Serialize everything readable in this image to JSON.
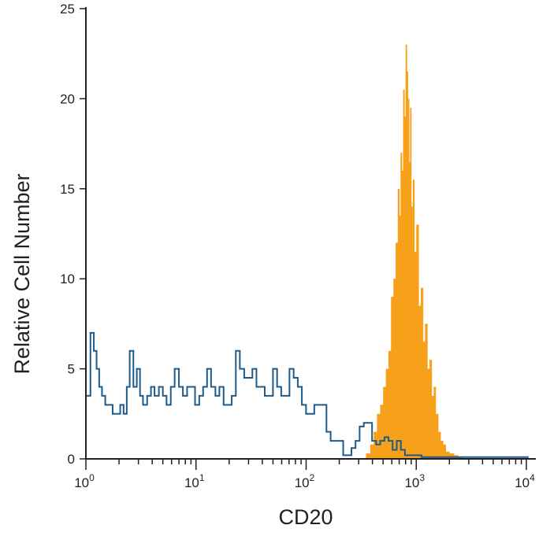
{
  "chart_data": {
    "type": "histogram",
    "title": "",
    "xlabel": "CD20",
    "ylabel": "Relative Cell Number",
    "x_scale": "log",
    "xlim": [
      1,
      10000
    ],
    "ylim": [
      0,
      25
    ],
    "x_ticks": [
      {
        "value": 1,
        "base": "10",
        "exp": "0"
      },
      {
        "value": 10,
        "base": "10",
        "exp": "1"
      },
      {
        "value": 100,
        "base": "10",
        "exp": "2"
      },
      {
        "value": 1000,
        "base": "10",
        "exp": "3"
      },
      {
        "value": 10000,
        "base": "10",
        "exp": "4"
      }
    ],
    "y_ticks": [
      0,
      5,
      10,
      15,
      20,
      25
    ],
    "grid": false,
    "legend": "none",
    "series": [
      {
        "style": "filled",
        "color": "#f7a11a",
        "x": [
          350,
          382,
          410,
          440,
          470,
          500,
          530,
          560,
          590,
          620,
          650,
          680,
          700,
          720,
          740,
          760,
          780,
          800,
          820,
          840,
          860,
          880,
          900,
          930,
          960,
          1000,
          1050,
          1100,
          1150,
          1200,
          1260,
          1320,
          1380,
          1440,
          1500,
          1580,
          1660,
          1750,
          1850,
          2000,
          2200,
          2400,
          2600
        ],
        "y": [
          0.3,
          0.8,
          1.5,
          2.5,
          3.0,
          4.0,
          5.0,
          6.0,
          9.0,
          10.0,
          12.0,
          15.0,
          13.5,
          17.0,
          16.0,
          20.5,
          19.0,
          23.0,
          21.5,
          20.0,
          16.5,
          19.5,
          14.0,
          15.5,
          11.5,
          13.0,
          8.5,
          9.5,
          6.5,
          7.5,
          5.0,
          5.5,
          3.5,
          4.0,
          2.5,
          1.5,
          1.0,
          0.8,
          0.4,
          0.3,
          0.2,
          0.1,
          0
        ]
      },
      {
        "style": "outline",
        "color": "#1e5b8a",
        "x": [
          1,
          1.1,
          1.18,
          1.25,
          1.32,
          1.4,
          1.5,
          1.6,
          1.75,
          1.9,
          2.05,
          2.2,
          2.35,
          2.5,
          2.7,
          2.9,
          3.1,
          3.3,
          3.6,
          3.9,
          4.2,
          4.6,
          5.0,
          5.4,
          5.9,
          6.4,
          7.0,
          7.6,
          8.3,
          9.0,
          9.8,
          10.7,
          11.6,
          12.6,
          13.7,
          15,
          16.3,
          17.8,
          19.4,
          21.1,
          23,
          25,
          27.4,
          29.8,
          32.5,
          35.4,
          38.6,
          42.1,
          45.9,
          50,
          54.5,
          59.4,
          64.8,
          70.6,
          77,
          84,
          91.5,
          99.8,
          108.8,
          118.6,
          129,
          141,
          153,
          167,
          182,
          199,
          217,
          236,
          258,
          281,
          306,
          334,
          364,
          397,
          432,
          471,
          514,
          560,
          610,
          665,
          725,
          790,
          861,
          939,
          1023,
          1115,
          1216,
          1325,
          1445,
          1575,
          1717,
          1870,
          2040,
          2224,
          2424,
          2642,
          2880,
          3140,
          3422,
          3731,
          4066,
          4432,
          4832,
          5267,
          5740,
          6258,
          6821,
          7435,
          8104,
          8834,
          9629
        ],
        "y": [
          3.5,
          7.0,
          6.0,
          5.0,
          4.0,
          3.5,
          3.0,
          3.0,
          2.5,
          2.5,
          3.0,
          2.5,
          4.0,
          6.0,
          4.0,
          5.0,
          3.5,
          3.0,
          3.5,
          4.0,
          3.5,
          4.0,
          3.5,
          3.0,
          4.0,
          5.0,
          4.0,
          3.5,
          4.0,
          4.0,
          3.0,
          3.5,
          4.0,
          5.0,
          4.0,
          3.5,
          4.0,
          3.0,
          3.0,
          3.5,
          6.0,
          5.0,
          4.5,
          4.5,
          5.0,
          4.0,
          4.0,
          3.5,
          3.5,
          5.0,
          4.0,
          3.5,
          3.5,
          5.0,
          4.5,
          4.0,
          3.0,
          2.5,
          2.5,
          3.0,
          3.0,
          3.0,
          1.5,
          1.0,
          1.0,
          1.0,
          0.2,
          0.2,
          0.6,
          1.0,
          1.8,
          2.0,
          2.0,
          1.0,
          0.8,
          1.0,
          1.2,
          1.0,
          0.5,
          1.0,
          0.5,
          0.2,
          0.2,
          0.2,
          0.2,
          0.1,
          0.1,
          0.1,
          0.1,
          0.1,
          0.1,
          0.1,
          0.1,
          0.1,
          0.1,
          0.1,
          0.1,
          0.1,
          0.1,
          0.1,
          0.1,
          0.1,
          0.1,
          0.1,
          0.1,
          0.1,
          0.1,
          0.1,
          0.1,
          0.1,
          0.1
        ]
      }
    ]
  }
}
